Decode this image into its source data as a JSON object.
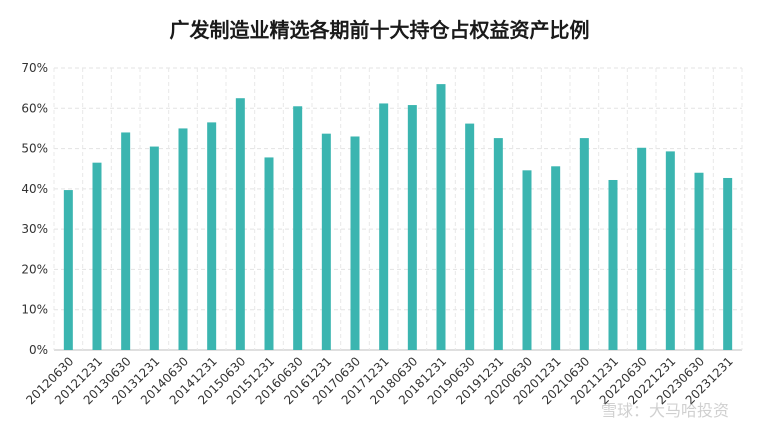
{
  "chart_data": {
    "type": "bar",
    "title": "广发制造业精选各期前十大持仓占权益资产比例",
    "xlabel": "",
    "ylabel": "",
    "ylim": [
      0,
      70
    ],
    "yticks": [
      "0%",
      "10%",
      "20%",
      "30%",
      "40%",
      "50%",
      "60%",
      "70%"
    ],
    "categories": [
      "20120630",
      "20121231",
      "20130630",
      "20131231",
      "20140630",
      "20141231",
      "20150630",
      "20151231",
      "20160630",
      "20161231",
      "20170630",
      "20171231",
      "20180630",
      "20181231",
      "20190630",
      "20191231",
      "20200630",
      "20201231",
      "20210630",
      "20211231",
      "20220630",
      "20221231",
      "20230630",
      "20231231"
    ],
    "values": [
      39.7,
      46.5,
      54.0,
      50.5,
      55.0,
      56.5,
      62.5,
      47.8,
      60.5,
      53.7,
      53.0,
      61.2,
      60.8,
      66.0,
      56.2,
      52.6,
      44.6,
      45.6,
      52.6,
      42.2,
      50.2,
      49.3,
      44.0,
      42.7
    ],
    "bar_color": "#3BB5B0",
    "grid": true
  },
  "watermark": "雪球：大马哈投资"
}
